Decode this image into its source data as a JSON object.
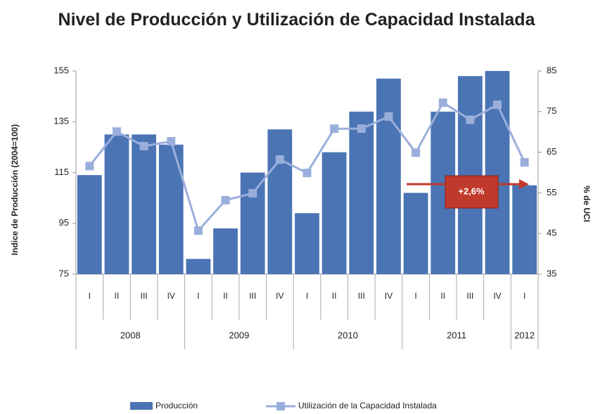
{
  "chart_data": {
    "type": "bar-line",
    "title": "Nivel de Producción y Utilización de Capacidad Instalada",
    "y_label": "Indice de Producción (2004=100)",
    "y2_label": "% de UCI",
    "groups": [
      {
        "name": "2008",
        "categories": [
          "I",
          "II",
          "III",
          "IV"
        ]
      },
      {
        "name": "2009",
        "categories": [
          "I",
          "II",
          "III",
          "IV"
        ]
      },
      {
        "name": "2010",
        "categories": [
          "I",
          "II",
          "III",
          "IV"
        ]
      },
      {
        "name": "2011",
        "categories": [
          "I",
          "II",
          "III",
          "IV"
        ]
      },
      {
        "name": "2012",
        "categories": [
          "I"
        ]
      }
    ],
    "series": [
      {
        "name": "Producción",
        "type": "bar",
        "color": "#4a74b4",
        "values": [
          114,
          130,
          130,
          126,
          81,
          93,
          115,
          132,
          99,
          123,
          139,
          152,
          107,
          139,
          153,
          155,
          110
        ]
      },
      {
        "name": "Utilización de la Capacidad Instalada",
        "type": "line",
        "axis": "y2",
        "color": "#9aaedc",
        "values": [
          61.6,
          70.1,
          66.5,
          67.7,
          45.7,
          53.2,
          54.9,
          63.2,
          59.9,
          70.8,
          70.8,
          73.8,
          64.9,
          77.2,
          73,
          76.7,
          62.5
        ]
      }
    ],
    "ylim": [
      75,
      155
    ],
    "yticks": [
      75,
      95,
      115,
      135,
      155
    ],
    "y2lim": [
      35,
      85
    ],
    "y2ticks": [
      35,
      45,
      55,
      65,
      75,
      85
    ],
    "annotation": "+2,6%",
    "legend": "bottom"
  }
}
